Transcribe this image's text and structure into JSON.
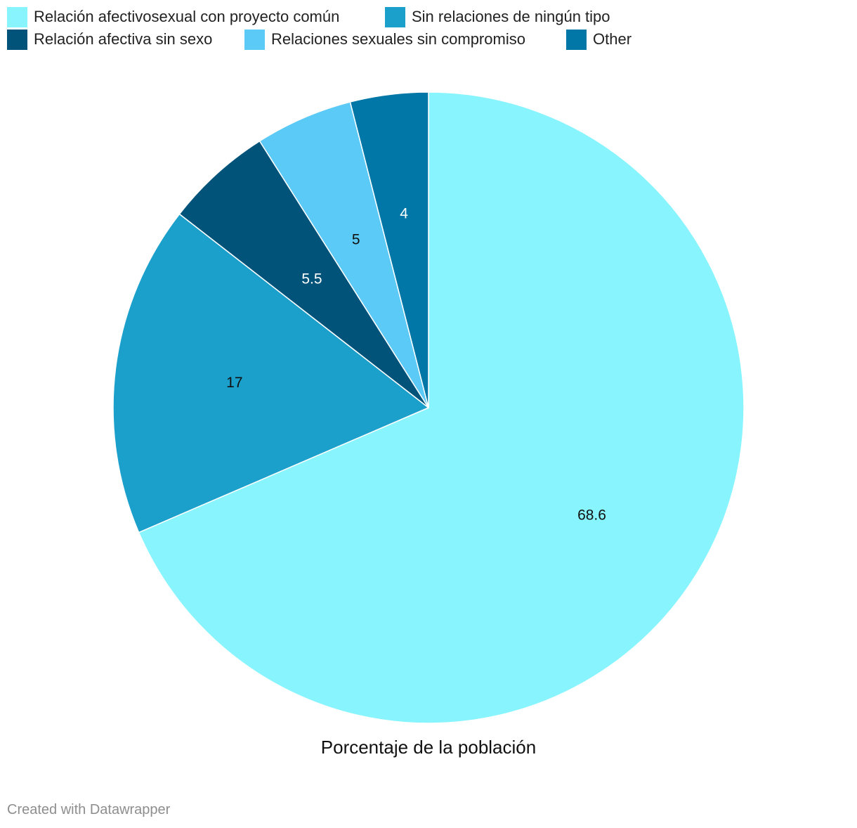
{
  "chart_data": {
    "type": "pie",
    "title": "Porcentaje de la población",
    "legend_placement": "top-left",
    "series": [
      {
        "name": "Relación afectivosexual con proyecto común",
        "value": 68.6,
        "label": "68.6",
        "color": "#88f4fd",
        "label_color": "#111111"
      },
      {
        "name": "Sin relaciones de ningún tipo",
        "value": 17,
        "label": "17",
        "color": "#1ba0cc",
        "label_color": "#111111"
      },
      {
        "name": "Relación afectiva sin sexo",
        "value": 5.5,
        "label": "5.5",
        "color": "#01537a",
        "label_color": "#ffffff"
      },
      {
        "name": "Relaciones sexuales sin compromiso",
        "value": 5,
        "label": "5",
        "color": "#5bcaf7",
        "label_color": "#111111"
      },
      {
        "name": "Other",
        "value": 4,
        "label": "4",
        "color": "#0077a6",
        "label_color": "#ffffff"
      }
    ]
  },
  "legend_order": [
    [
      0,
      1
    ],
    [
      2,
      3,
      4
    ]
  ],
  "footer": {
    "credit": "Created with Datawrapper"
  }
}
